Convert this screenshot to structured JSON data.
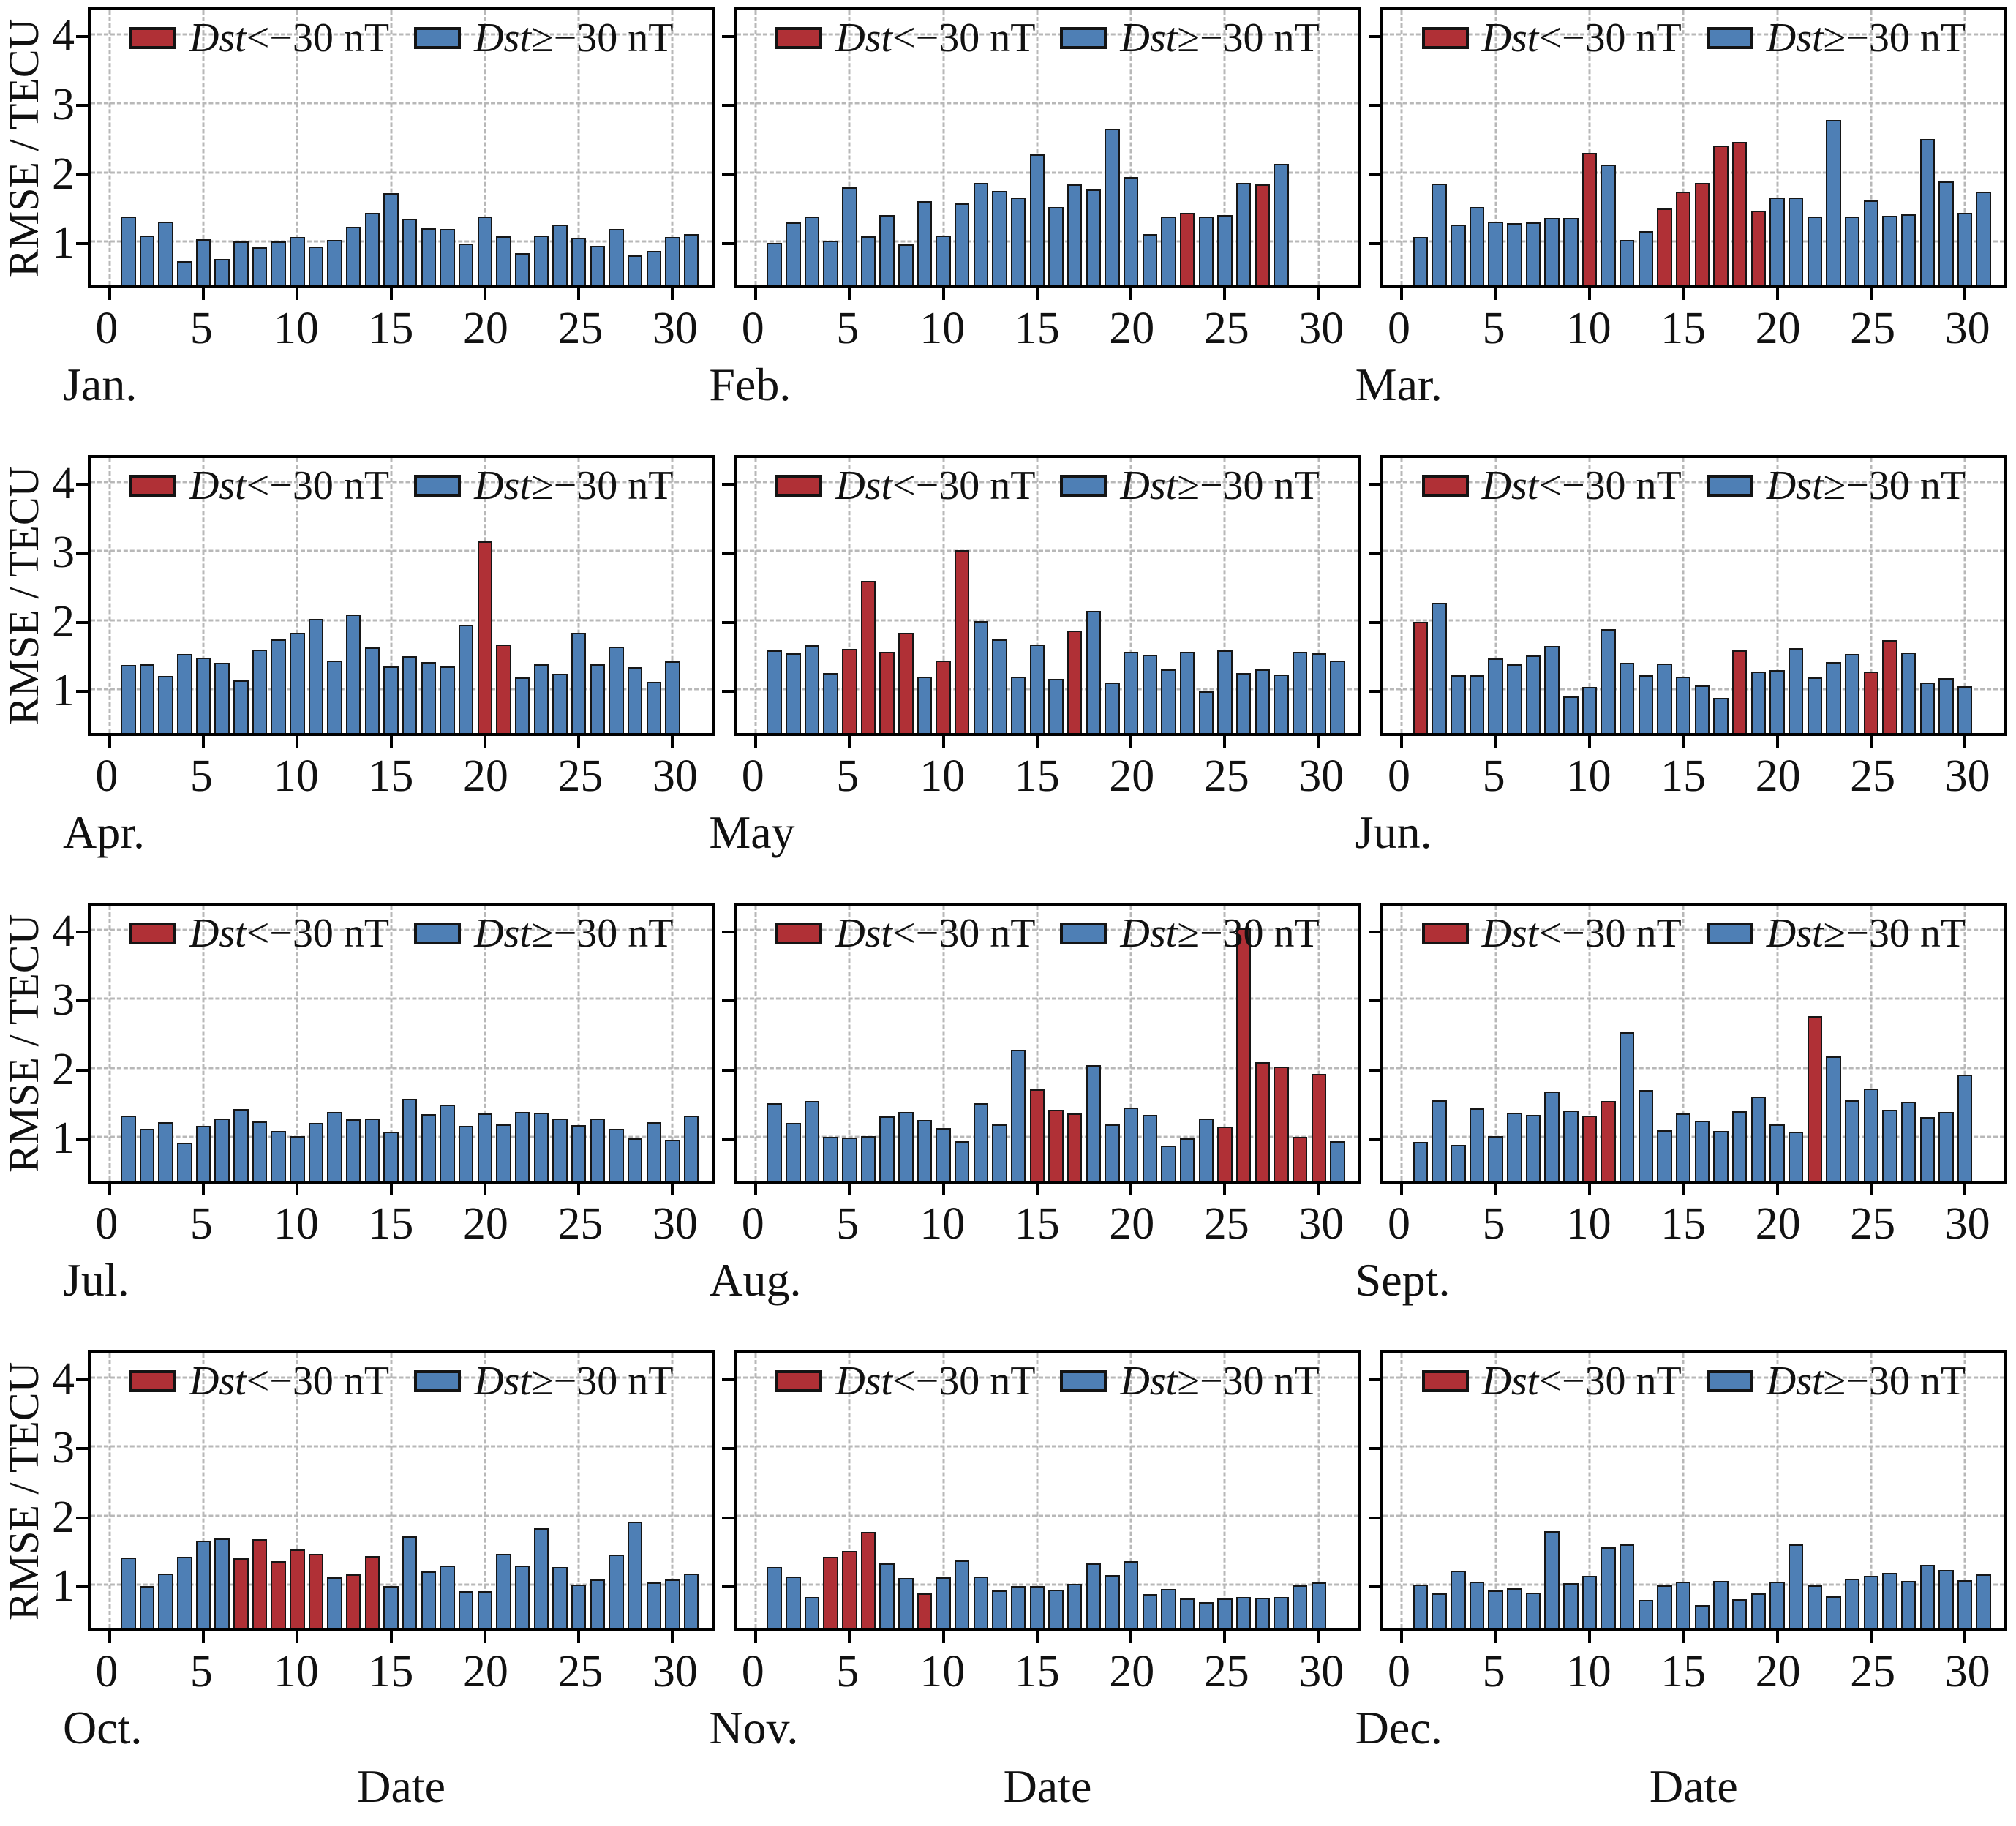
{
  "figure": {
    "y_axis_label": "RMSE / TECU",
    "x_axis_label": "Date",
    "y_tick_values": [
      1,
      2,
      3,
      4
    ],
    "y_tick_labels": [
      "1",
      "2",
      "3",
      "4"
    ],
    "x_tick_values": [
      0,
      5,
      10,
      15,
      20,
      25,
      30
    ],
    "x_tick_labels": [
      "0",
      "5",
      "10",
      "15",
      "20",
      "25",
      "30"
    ],
    "ylim": [
      0.4,
      4.38
    ],
    "xlim": [
      -1.0,
      32.1
    ],
    "grid": "dashed",
    "legend_position": "top-center-inside",
    "legend": {
      "storm": {
        "variable": "Dst",
        "condition": "<−30 nT"
      },
      "quiet": {
        "variable": "Dst",
        "condition": "≥−30 nT"
      }
    },
    "colors": {
      "storm": "#b03036",
      "quiet": "#4e7fb5",
      "bar_edge": "#161616",
      "grid": "#b8b8b8",
      "axis": "#000000"
    }
  },
  "chart_data": [
    {
      "type": "bar",
      "month": "Jan.",
      "ylabel": "RMSE / TECU",
      "storm_days": [],
      "values": [
        1.4,
        1.12,
        1.32,
        0.75,
        1.07,
        0.78,
        1.04,
        0.95,
        1.03,
        1.1,
        0.96,
        1.06,
        1.25,
        1.45,
        1.73,
        1.36,
        1.23,
        1.22,
        1.0,
        1.4,
        1.11,
        0.87,
        1.12,
        1.28,
        1.09,
        0.97,
        1.21,
        0.83,
        0.9,
        1.1,
        1.14
      ]
    },
    {
      "type": "bar",
      "month": "Feb.",
      "ylabel": "RMSE / TECU",
      "storm_days": [
        23,
        27
      ],
      "values": [
        1.01,
        1.31,
        1.39,
        1.05,
        1.82,
        1.11,
        1.42,
        0.99,
        1.62,
        1.12,
        1.59,
        1.88,
        1.77,
        1.67,
        2.29,
        1.53,
        1.86,
        1.79,
        2.67,
        1.97,
        1.14,
        1.4,
        1.45,
        1.39,
        1.42,
        1.88,
        1.86,
        2.16
      ]
    },
    {
      "type": "bar",
      "month": "Mar.",
      "ylabel": "RMSE / TECU",
      "storm_days": [
        10,
        14,
        15,
        16,
        17,
        18,
        19
      ],
      "values": [
        1.1,
        1.87,
        1.28,
        1.53,
        1.32,
        1.3,
        1.31,
        1.37,
        1.37,
        2.32,
        2.15,
        1.06,
        1.18,
        1.51,
        1.75,
        1.88,
        2.42,
        2.47,
        1.48,
        1.67,
        1.67,
        1.4,
        2.79,
        1.4,
        1.63,
        1.41,
        1.43,
        2.52,
        1.9,
        1.45,
        1.76
      ]
    },
    {
      "type": "bar",
      "month": "Apr.",
      "ylabel": "RMSE / TECU",
      "storm_days": [
        20,
        21
      ],
      "values": [
        1.38,
        1.4,
        1.23,
        1.54,
        1.49,
        1.42,
        1.16,
        1.61,
        1.76,
        1.85,
        2.05,
        1.45,
        2.12,
        1.64,
        1.36,
        1.51,
        1.43,
        1.36,
        1.97,
        3.17,
        1.68,
        1.2,
        1.4,
        1.26,
        1.85,
        1.4,
        1.65,
        1.35,
        1.14,
        1.44
      ]
    },
    {
      "type": "bar",
      "month": "May",
      "ylabel": "RMSE / TECU",
      "storm_days": [
        5,
        6,
        7,
        8,
        10,
        11,
        17
      ],
      "values": [
        1.6,
        1.55,
        1.67,
        1.27,
        1.62,
        2.6,
        1.57,
        1.85,
        1.22,
        1.45,
        3.05,
        2.02,
        1.75,
        1.22,
        1.68,
        1.18,
        1.88,
        2.17,
        1.13,
        1.58,
        1.53,
        1.32,
        1.57,
        1.0,
        1.6,
        1.27,
        1.32,
        1.25,
        1.58,
        1.55,
        1.45
      ]
    },
    {
      "type": "bar",
      "month": "Jun.",
      "ylabel": "RMSE / TECU",
      "storm_days": [
        1,
        18,
        25,
        26
      ],
      "values": [
        2.01,
        2.28,
        1.24,
        1.24,
        1.48,
        1.39,
        1.52,
        1.66,
        0.93,
        1.07,
        1.9,
        1.42,
        1.24,
        1.41,
        1.21,
        1.09,
        0.91,
        1.6,
        1.29,
        1.31,
        1.63,
        1.2,
        1.43,
        1.54,
        1.29,
        1.74,
        1.56,
        1.13,
        1.19,
        1.08
      ]
    },
    {
      "type": "bar",
      "month": "Jul.",
      "ylabel": "RMSE / TECU",
      "storm_days": [],
      "values": [
        1.34,
        1.15,
        1.25,
        0.95,
        1.19,
        1.3,
        1.44,
        1.26,
        1.12,
        1.05,
        1.24,
        1.39,
        1.29,
        1.3,
        1.11,
        1.59,
        1.36,
        1.5,
        1.19,
        1.37,
        1.21,
        1.4,
        1.38,
        1.3,
        1.2,
        1.3,
        1.15,
        1.01,
        1.25,
        0.99,
        1.34
      ]
    },
    {
      "type": "bar",
      "month": "Aug.",
      "ylabel": "RMSE / TECU",
      "storm_days": [
        15,
        16,
        17,
        25,
        26,
        27,
        28,
        29,
        30
      ],
      "values": [
        1.52,
        1.24,
        1.55,
        1.04,
        1.02,
        1.05,
        1.33,
        1.4,
        1.28,
        1.16,
        0.97,
        1.52,
        1.21,
        2.3,
        1.72,
        1.43,
        1.37,
        2.07,
        1.22,
        1.46,
        1.35,
        0.91,
        1.01,
        1.3,
        1.18,
        4.05,
        2.12,
        2.05,
        1.03,
        1.95,
        0.97
      ]
    },
    {
      "type": "bar",
      "month": "Sept.",
      "ylabel": "RMSE / TECU",
      "storm_days": [
        10,
        11,
        22
      ],
      "values": [
        0.96,
        1.56,
        0.92,
        1.45,
        1.05,
        1.38,
        1.35,
        1.69,
        1.42,
        1.34,
        1.55,
        2.55,
        1.71,
        1.13,
        1.37,
        1.27,
        1.12,
        1.41,
        1.62,
        1.22,
        1.11,
        2.78,
        2.2,
        1.56,
        1.73,
        1.43,
        1.54,
        1.32,
        1.39,
        1.94
      ]
    },
    {
      "type": "bar",
      "month": "Oct.",
      "ylabel": "RMSE / TECU",
      "storm_days": [
        7,
        8,
        9,
        10,
        11,
        13,
        14
      ],
      "values": [
        1.43,
        1.01,
        1.19,
        1.44,
        1.67,
        1.7,
        1.42,
        1.69,
        1.37,
        1.54,
        1.48,
        1.14,
        1.18,
        1.45,
        1.01,
        1.73,
        1.23,
        1.31,
        0.94,
        0.94,
        1.48,
        1.31,
        1.85,
        1.29,
        1.04,
        1.11,
        1.47,
        1.95,
        1.07,
        1.11,
        1.19
      ]
    },
    {
      "type": "bar",
      "month": "Nov.",
      "ylabel": "RMSE / TECU",
      "storm_days": [
        4,
        5,
        6,
        9
      ],
      "values": [
        1.29,
        1.15,
        0.86,
        1.44,
        1.52,
        1.8,
        1.34,
        1.13,
        0.91,
        1.14,
        1.38,
        1.15,
        0.95,
        1.01,
        1.01,
        0.96,
        1.05,
        1.34,
        1.17,
        1.37,
        0.9,
        0.97,
        0.83,
        0.78,
        0.83,
        0.86,
        0.85,
        0.86,
        1.02,
        1.07
      ]
    },
    {
      "type": "bar",
      "month": "Dec.",
      "ylabel": "RMSE / TECU",
      "storm_days": [],
      "values": [
        1.04,
        0.91,
        1.24,
        1.08,
        0.95,
        0.98,
        0.92,
        1.81,
        1.06,
        1.16,
        1.57,
        1.62,
        0.81,
        1.02,
        1.08,
        0.74,
        1.09,
        0.82,
        0.91,
        1.08,
        1.62,
        1.02,
        0.87,
        1.12,
        1.16,
        1.2,
        1.09,
        1.32,
        1.25,
        1.1,
        1.18
      ]
    }
  ]
}
